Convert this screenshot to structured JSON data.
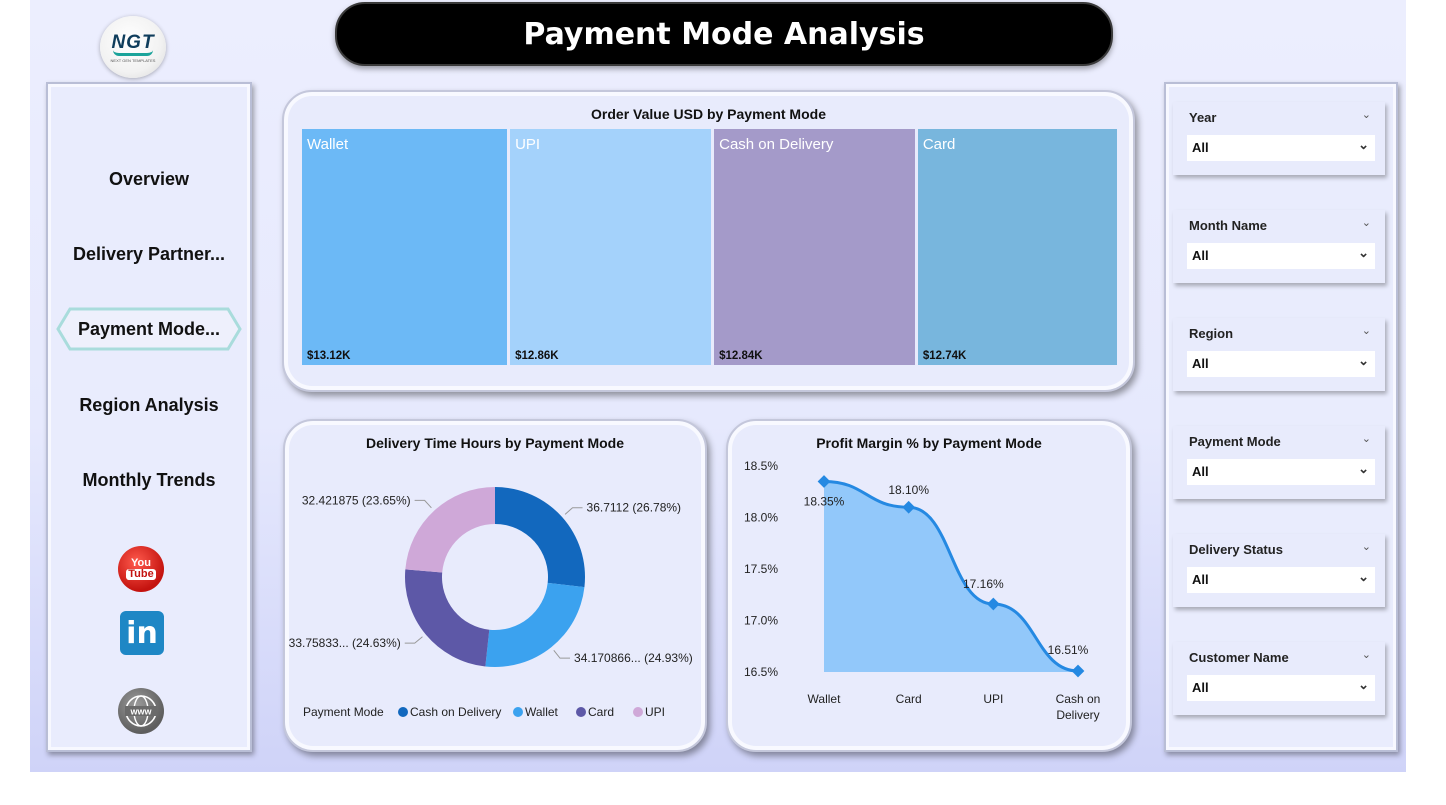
{
  "title": "Payment Mode Analysis",
  "logo": {
    "main": "NGT",
    "sub": "NEXT GEN TEMPLATES"
  },
  "nav": {
    "items": [
      "Overview",
      "Delivery Partner...",
      "Payment Mode...",
      "Region Analysis",
      "Monthly Trends"
    ],
    "active": "Payment Mode..."
  },
  "social": {
    "youtube_top": "You",
    "youtube_bottom": "Tube",
    "linkedin": "in",
    "web": "www"
  },
  "filters": [
    {
      "title": "Year",
      "value": "All"
    },
    {
      "title": "Month Name",
      "value": "All"
    },
    {
      "title": "Region",
      "value": "All"
    },
    {
      "title": "Payment Mode",
      "value": "All"
    },
    {
      "title": "Delivery Status",
      "value": "All"
    },
    {
      "title": "Customer Name",
      "value": "All"
    }
  ],
  "chart_data": [
    {
      "type": "treemap",
      "title": "Order Value USD by Payment Mode",
      "categories": [
        "Wallet",
        "UPI",
        "Cash on Delivery",
        "Card"
      ],
      "values": [
        13.12,
        12.86,
        12.84,
        12.74
      ],
      "value_labels": [
        "$13.12K",
        "$12.86K",
        "$12.84K",
        "$12.74K"
      ],
      "colors": [
        "#6cb9f6",
        "#a4d2fb",
        "#a49ac9",
        "#78b6dd"
      ]
    },
    {
      "type": "pie",
      "title": "Delivery Time Hours by Payment Mode",
      "legend_title": "Payment Mode",
      "categories": [
        "Cash on Delivery",
        "Wallet",
        "Card",
        "UPI"
      ],
      "values": [
        36.7112,
        34.170866,
        33.75833,
        32.421875
      ],
      "percents": [
        26.78,
        24.93,
        24.63,
        23.65
      ],
      "labels": [
        "36.7112 (26.78%)",
        "34.170866... (24.93%)",
        "33.75833... (24.63%)",
        "32.421875 (23.65%)"
      ],
      "colors": [
        "#1268be",
        "#3ba2ef",
        "#5d58a7",
        "#cfa8d8"
      ]
    },
    {
      "type": "area",
      "title": "Profit Margin % by Payment Mode",
      "categories": [
        "Wallet",
        "Card",
        "UPI",
        "Cash on Delivery"
      ],
      "values": [
        18.35,
        18.1,
        17.16,
        16.51
      ],
      "value_labels": [
        "18.35%",
        "18.10%",
        "17.16%",
        "16.51%"
      ],
      "y_ticks": [
        "18.5%",
        "18.0%",
        "17.5%",
        "17.0%",
        "16.5%"
      ],
      "ylim": [
        16.5,
        18.5
      ],
      "colors": {
        "fill": "#92c8fa",
        "line": "#2589e2"
      }
    }
  ]
}
